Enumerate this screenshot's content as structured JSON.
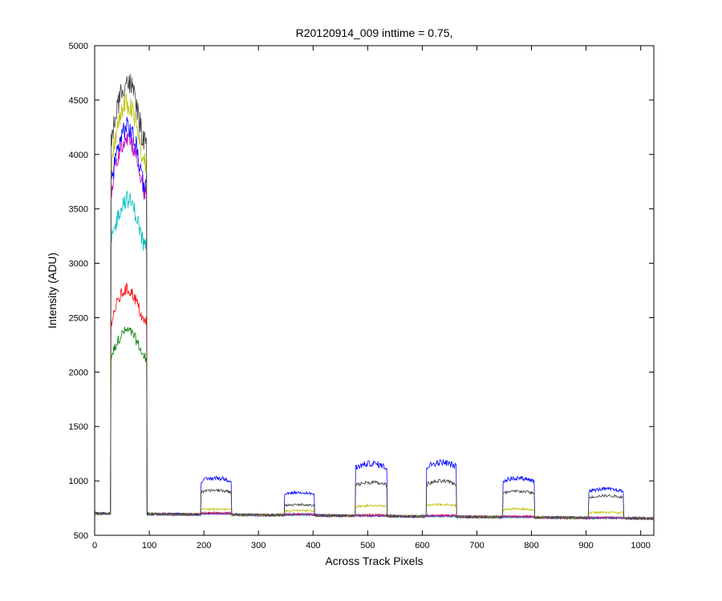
{
  "chart_data": {
    "type": "line",
    "title": "R20120914_009 inttime = 0.75,",
    "xlabel": "Across Track Pixels",
    "ylabel": "Intensity (ADU)",
    "xlim": [
      0,
      1024
    ],
    "ylim": [
      500,
      5000
    ],
    "xticks": [
      "0",
      "100",
      "200",
      "300",
      "400",
      "500",
      "600",
      "700",
      "800",
      "900",
      "1000"
    ],
    "yticks": [
      "500",
      "1000",
      "1500",
      "2000",
      "2500",
      "3000",
      "3500",
      "4000",
      "4500",
      "5000"
    ],
    "grid": false,
    "legend": "none",
    "baseline": {
      "x": [
        0,
        1024
      ],
      "y": [
        700,
        655
      ]
    },
    "bars": [
      {
        "x_start": 30,
        "x_end": 95
      },
      {
        "x_start": 195,
        "x_end": 250
      },
      {
        "x_start": 348,
        "x_end": 402
      },
      {
        "x_start": 478,
        "x_end": 535
      },
      {
        "x_start": 608,
        "x_end": 662
      },
      {
        "x_start": 748,
        "x_end": 805
      },
      {
        "x_start": 905,
        "x_end": 968
      }
    ],
    "series": [
      {
        "color": "#404040",
        "peaks": [
          4480,
          910,
          780,
          980,
          990,
          900,
          860
        ]
      },
      {
        "color": "#bfbf00",
        "peaks": [
          4280,
          740,
          725,
          770,
          780,
          740,
          710
        ]
      },
      {
        "color": "#0000ff",
        "peaks": [
          4080,
          1020,
          890,
          1150,
          1160,
          1020,
          920
        ]
      },
      {
        "color": "#bf00bf",
        "peaks": [
          4000,
          700,
          690,
          680,
          680,
          670,
          660
        ]
      },
      {
        "color": "#00bfbf",
        "peaks": [
          3450,
          700,
          690,
          680,
          675,
          670,
          660
        ]
      },
      {
        "color": "#ff0000",
        "peaks": [
          2660,
          705,
          695,
          685,
          680,
          672,
          662
        ]
      },
      {
        "color": "#008000",
        "peaks": [
          2300,
          700,
          690,
          680,
          678,
          668,
          658
        ]
      }
    ]
  }
}
